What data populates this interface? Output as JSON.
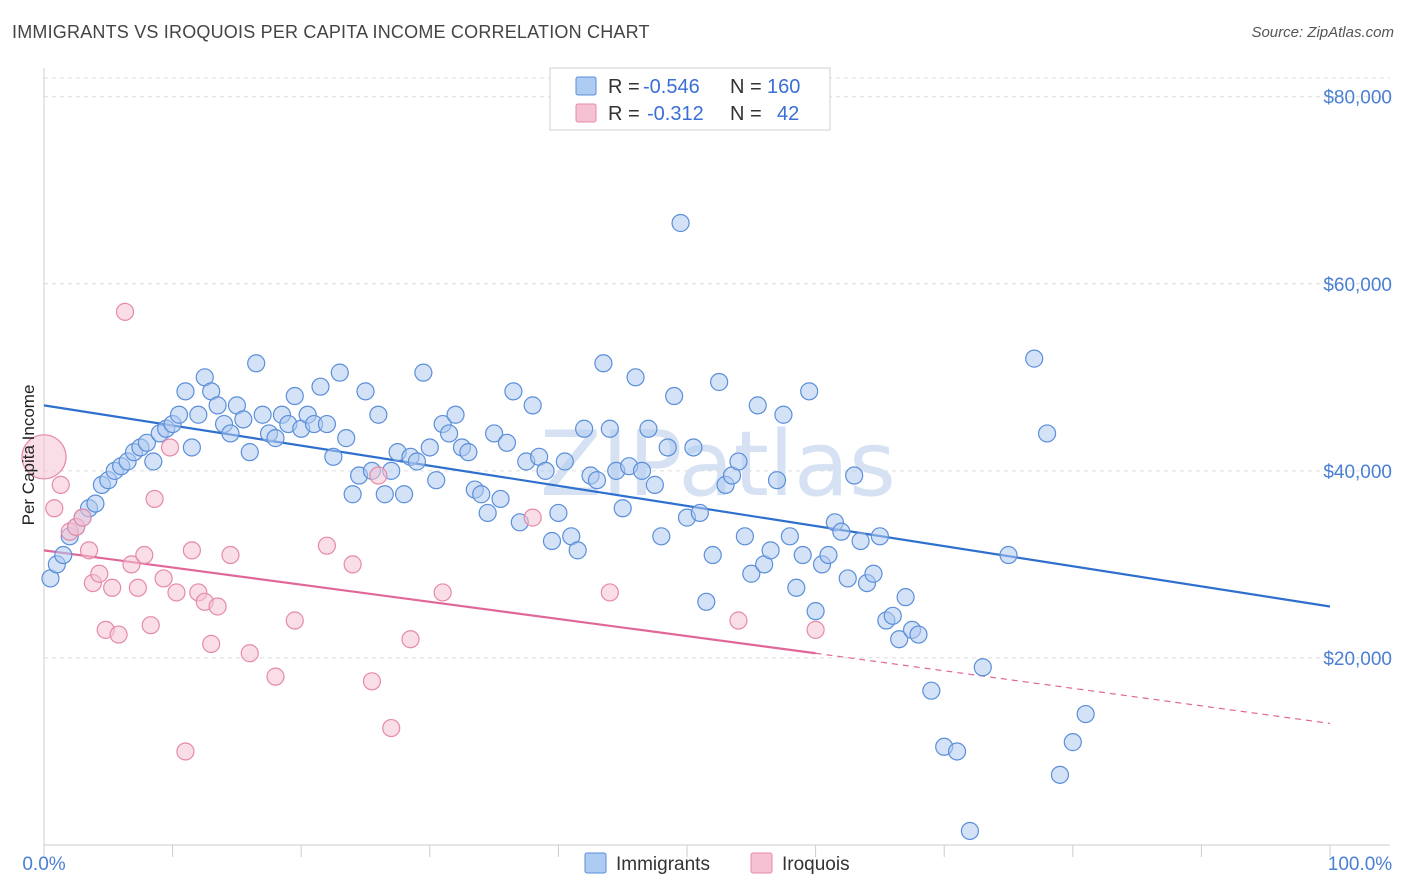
{
  "title": "IMMIGRANTS VS IROQUOIS PER CAPITA INCOME CORRELATION CHART",
  "source": "Source: ZipAtlas.com",
  "watermark": "ZIPatlas",
  "colors": {
    "immigrants_fill": "#aecbf1",
    "immigrants_stroke": "#5b8fd9",
    "immigrants_line": "#2f6fce",
    "iroquois_fill": "#f6c2d3",
    "iroquois_stroke": "#e58aa8",
    "iroquois_line": "#e0679a",
    "axis_text": "#4a7fd4",
    "grid": "#dcdcdc"
  },
  "legend": {
    "rows": [
      {
        "r_label": "R =",
        "r_value": "-0.546",
        "n_label": "N =",
        "n_value": "160"
      },
      {
        "r_label": "R =",
        "r_value": "-0.312",
        "n_label": "N =",
        "n_value": "42"
      }
    ]
  },
  "bottom_legend": [
    "Immigrants",
    "Iroquois"
  ],
  "chart_data": {
    "type": "scatter",
    "title": "IMMIGRANTS VS IROQUOIS PER CAPITA INCOME CORRELATION CHART",
    "xlabel": "",
    "ylabel": "Per Capita Income",
    "xlim": [
      0,
      100
    ],
    "ylim": [
      0,
      82000
    ],
    "x_tick_labels": [
      "0.0%",
      "100.0%"
    ],
    "y_ticks": [
      20000,
      40000,
      60000,
      80000
    ],
    "y_tick_labels": [
      "$20,000",
      "$40,000",
      "$60,000",
      "$80,000"
    ],
    "grid": "horizontal dashed",
    "legend_position": "top-center",
    "series": [
      {
        "name": "Immigrants",
        "r": -0.546,
        "n": 160,
        "trend": {
          "x0": 0,
          "y0": 47000,
          "x1": 100,
          "y1": 25500
        },
        "points": [
          [
            0.5,
            28500
          ],
          [
            1,
            30000
          ],
          [
            1.5,
            31000
          ],
          [
            2,
            33000
          ],
          [
            2.5,
            34000
          ],
          [
            3,
            35000
          ],
          [
            3.5,
            36000
          ],
          [
            4,
            36500
          ],
          [
            4.5,
            38500
          ],
          [
            5,
            39000
          ],
          [
            5.5,
            40000
          ],
          [
            6,
            40500
          ],
          [
            6.5,
            41000
          ],
          [
            7,
            42000
          ],
          [
            7.5,
            42500
          ],
          [
            8,
            43000
          ],
          [
            8.5,
            41000
          ],
          [
            9,
            44000
          ],
          [
            9.5,
            44500
          ],
          [
            10,
            45000
          ],
          [
            10.5,
            46000
          ],
          [
            11,
            48500
          ],
          [
            11.5,
            42500
          ],
          [
            12,
            46000
          ],
          [
            12.5,
            50000
          ],
          [
            13,
            48500
          ],
          [
            13.5,
            47000
          ],
          [
            14,
            45000
          ],
          [
            14.5,
            44000
          ],
          [
            15,
            47000
          ],
          [
            15.5,
            45500
          ],
          [
            16,
            42000
          ],
          [
            16.5,
            51500
          ],
          [
            17,
            46000
          ],
          [
            17.5,
            44000
          ],
          [
            18,
            43500
          ],
          [
            18.5,
            46000
          ],
          [
            19,
            45000
          ],
          [
            19.5,
            48000
          ],
          [
            20,
            44500
          ],
          [
            20.5,
            46000
          ],
          [
            21,
            45000
          ],
          [
            21.5,
            49000
          ],
          [
            22,
            45000
          ],
          [
            22.5,
            41500
          ],
          [
            23,
            50500
          ],
          [
            23.5,
            43500
          ],
          [
            24,
            37500
          ],
          [
            24.5,
            39500
          ],
          [
            25,
            48500
          ],
          [
            25.5,
            40000
          ],
          [
            26,
            46000
          ],
          [
            26.5,
            37500
          ],
          [
            27,
            40000
          ],
          [
            27.5,
            42000
          ],
          [
            28,
            37500
          ],
          [
            28.5,
            41500
          ],
          [
            29,
            41000
          ],
          [
            29.5,
            50500
          ],
          [
            30,
            42500
          ],
          [
            30.5,
            39000
          ],
          [
            31,
            45000
          ],
          [
            31.5,
            44000
          ],
          [
            32,
            46000
          ],
          [
            32.5,
            42500
          ],
          [
            33,
            42000
          ],
          [
            33.5,
            38000
          ],
          [
            34,
            37500
          ],
          [
            34.5,
            35500
          ],
          [
            35,
            44000
          ],
          [
            35.5,
            37000
          ],
          [
            36,
            43000
          ],
          [
            36.5,
            48500
          ],
          [
            37,
            34500
          ],
          [
            37.5,
            41000
          ],
          [
            38,
            47000
          ],
          [
            38.5,
            41500
          ],
          [
            39,
            40000
          ],
          [
            39.5,
            32500
          ],
          [
            40,
            35500
          ],
          [
            40.5,
            41000
          ],
          [
            41,
            33000
          ],
          [
            41.5,
            31500
          ],
          [
            42,
            44500
          ],
          [
            42.5,
            39500
          ],
          [
            43,
            39000
          ],
          [
            43.5,
            51500
          ],
          [
            44,
            44500
          ],
          [
            44.5,
            40000
          ],
          [
            45,
            36000
          ],
          [
            45.5,
            40500
          ],
          [
            46,
            50000
          ],
          [
            46.5,
            40000
          ],
          [
            47,
            44500
          ],
          [
            47.5,
            38500
          ],
          [
            48,
            33000
          ],
          [
            48.5,
            42500
          ],
          [
            49,
            48000
          ],
          [
            49.5,
            66500
          ],
          [
            50,
            35000
          ],
          [
            50.5,
            42500
          ],
          [
            51,
            35500
          ],
          [
            51.5,
            26000
          ],
          [
            52,
            31000
          ],
          [
            52.5,
            49500
          ],
          [
            53,
            38500
          ],
          [
            53.5,
            39500
          ],
          [
            54,
            41000
          ],
          [
            54.5,
            33000
          ],
          [
            55,
            29000
          ],
          [
            55.5,
            47000
          ],
          [
            56,
            30000
          ],
          [
            56.5,
            31500
          ],
          [
            57,
            39000
          ],
          [
            57.5,
            46000
          ],
          [
            58,
            33000
          ],
          [
            58.5,
            27500
          ],
          [
            59,
            31000
          ],
          [
            59.5,
            48500
          ],
          [
            60,
            25000
          ],
          [
            60.5,
            30000
          ],
          [
            61,
            31000
          ],
          [
            61.5,
            34500
          ],
          [
            62,
            33500
          ],
          [
            62.5,
            28500
          ],
          [
            63,
            39500
          ],
          [
            63.5,
            32500
          ],
          [
            64,
            28000
          ],
          [
            64.5,
            29000
          ],
          [
            65,
            33000
          ],
          [
            65.5,
            24000
          ],
          [
            66,
            24500
          ],
          [
            66.5,
            22000
          ],
          [
            67,
            26500
          ],
          [
            67.5,
            23000
          ],
          [
            68,
            22500
          ],
          [
            69,
            16500
          ],
          [
            70,
            10500
          ],
          [
            71,
            10000
          ],
          [
            72,
            1500
          ],
          [
            73,
            19000
          ],
          [
            75,
            31000
          ],
          [
            77,
            52000
          ],
          [
            78,
            44000
          ],
          [
            79,
            7500
          ],
          [
            80,
            11000
          ],
          [
            81,
            14000
          ]
        ],
        "outlier_note": "points scattered along a declining trend"
      },
      {
        "name": "Iroquois",
        "r": -0.312,
        "n": 42,
        "trend": {
          "x0": 0,
          "y0": 31500,
          "x1": 60,
          "y1": 20500,
          "dashed_to_x": 100,
          "dashed_to_y": 13000
        },
        "points": [
          [
            0,
            41500
          ],
          [
            0.8,
            36000
          ],
          [
            1.3,
            38500
          ],
          [
            2,
            33500
          ],
          [
            2.5,
            34000
          ],
          [
            3,
            35000
          ],
          [
            3.5,
            31500
          ],
          [
            3.8,
            28000
          ],
          [
            4.3,
            29000
          ],
          [
            4.8,
            23000
          ],
          [
            5.3,
            27500
          ],
          [
            5.8,
            22500
          ],
          [
            6.3,
            57000
          ],
          [
            6.8,
            30000
          ],
          [
            7.3,
            27500
          ],
          [
            7.8,
            31000
          ],
          [
            8.3,
            23500
          ],
          [
            8.6,
            37000
          ],
          [
            9.3,
            28500
          ],
          [
            9.8,
            42500
          ],
          [
            10.3,
            27000
          ],
          [
            11,
            10000
          ],
          [
            11.5,
            31500
          ],
          [
            12,
            27000
          ],
          [
            12.5,
            26000
          ],
          [
            13,
            21500
          ],
          [
            13.5,
            25500
          ],
          [
            14.5,
            31000
          ],
          [
            16,
            20500
          ],
          [
            18,
            18000
          ],
          [
            19.5,
            24000
          ],
          [
            22,
            32000
          ],
          [
            24,
            30000
          ],
          [
            25.5,
            17500
          ],
          [
            26,
            39500
          ],
          [
            27,
            12500
          ],
          [
            28.5,
            22000
          ],
          [
            31,
            27000
          ],
          [
            38,
            35000
          ],
          [
            44,
            27000
          ],
          [
            54,
            24000
          ],
          [
            60,
            23000
          ]
        ]
      }
    ]
  }
}
